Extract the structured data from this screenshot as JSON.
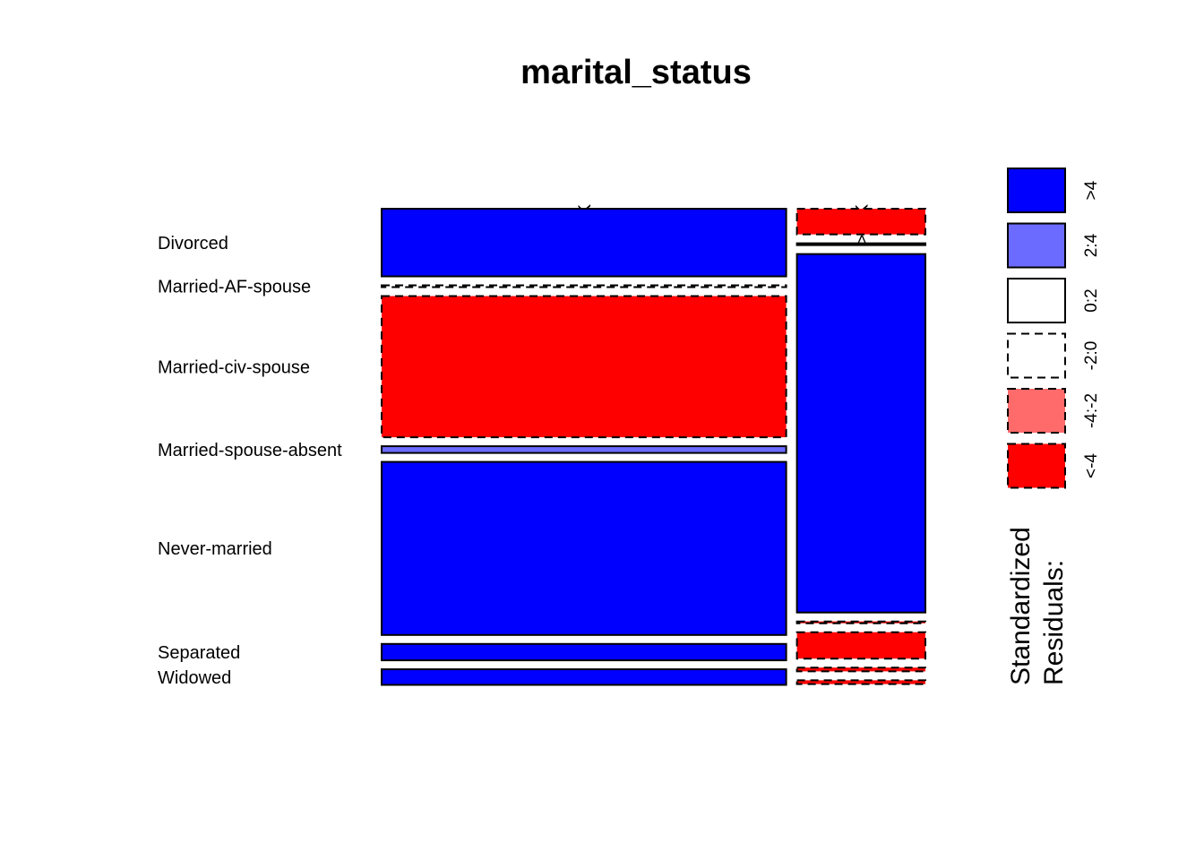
{
  "chart_data": {
    "type": "mosaic",
    "title": "marital_status",
    "columns": [
      "<=50K",
      ">50K"
    ],
    "column_proportions": [
      0.759,
      0.241
    ],
    "rows": [
      {
        "label": "Divorced",
        "cells": [
          {
            "proportion": 0.161,
            "residual": "pos_strong"
          },
          {
            "proportion": 0.061,
            "residual": "neg_strong"
          }
        ]
      },
      {
        "label": "Married-AF-spouse",
        "cells": [
          {
            "proportion": 0.001,
            "residual": "neg_weak"
          },
          {
            "proportion": 0.001,
            "residual": "zero_pos"
          }
        ]
      },
      {
        "label": "Married-civ-spouse",
        "cells": [
          {
            "proportion": 0.336,
            "residual": "neg_strong"
          },
          {
            "proportion": 0.853,
            "residual": "pos_strong"
          }
        ]
      },
      {
        "label": "Married-spouse-absent",
        "cells": [
          {
            "proportion": 0.016,
            "residual": "pos_mid"
          },
          {
            "proportion": 0.004,
            "residual": "neg_strong"
          }
        ]
      },
      {
        "label": "Never-married",
        "cells": [
          {
            "proportion": 0.412,
            "residual": "pos_strong"
          },
          {
            "proportion": 0.063,
            "residual": "neg_strong"
          }
        ]
      },
      {
        "label": "Separated",
        "cells": [
          {
            "proportion": 0.039,
            "residual": "pos_strong"
          },
          {
            "proportion": 0.009,
            "residual": "neg_strong"
          }
        ]
      },
      {
        "label": "Widowed",
        "cells": [
          {
            "proportion": 0.037,
            "residual": "pos_strong"
          },
          {
            "proportion": 0.009,
            "residual": "neg_strong"
          }
        ]
      }
    ],
    "legend": {
      "title_lines": [
        "Standardized",
        "Residuals:"
      ],
      "position": "right",
      "bins": [
        {
          "key": "pos_strong",
          "label": ">4",
          "color": "#0000FF",
          "dashed": false
        },
        {
          "key": "pos_mid",
          "label": "2:4",
          "color": "#6B6BFF",
          "dashed": false
        },
        {
          "key": "zero_pos",
          "label": "0:2",
          "color": "#FFFFFF",
          "dashed": false
        },
        {
          "key": "neg_weak",
          "label": "-2:0",
          "color": "#FFFFFF",
          "dashed": true
        },
        {
          "key": "neg_mid",
          "label": "-4:-2",
          "color": "#FF6B6B",
          "dashed": true
        },
        {
          "key": "neg_strong",
          "label": "<-4",
          "color": "#FF0000",
          "dashed": true
        }
      ]
    }
  }
}
